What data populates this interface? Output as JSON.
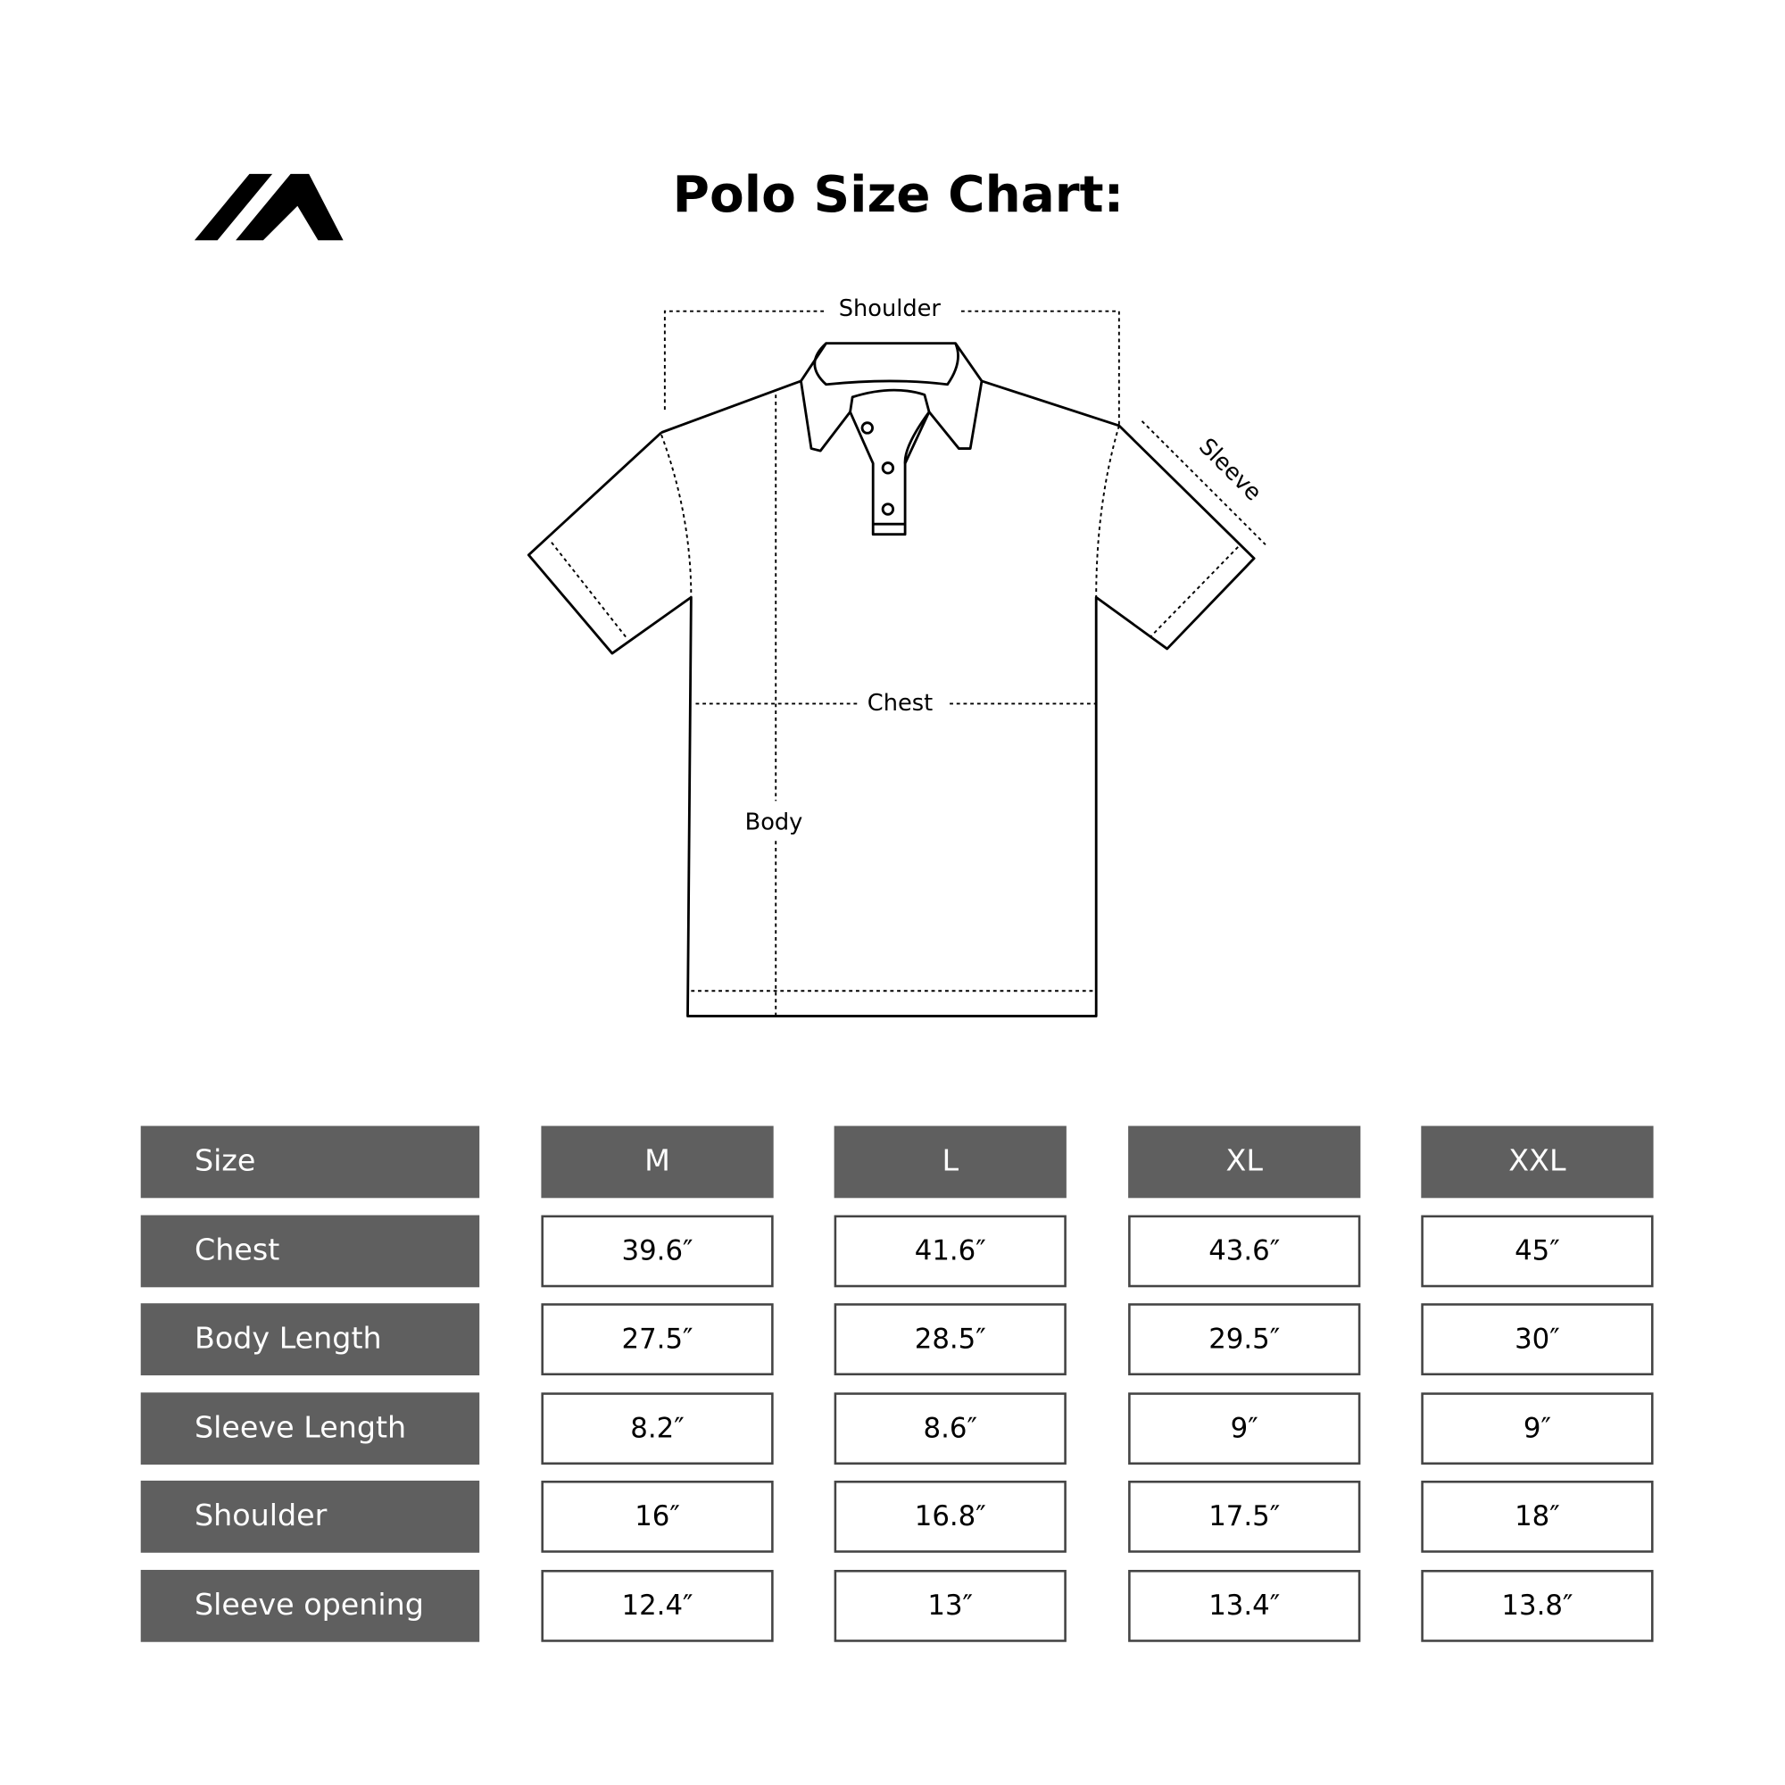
{
  "title": "Polo Size Chart:",
  "logo": {
    "name": "brand-logo-mountain-icon"
  },
  "diagram_labels": {
    "shoulder": "Shoulder",
    "sleeve": "Sleeve",
    "chest": "Chest",
    "body": "Body"
  },
  "table": {
    "corner": "Size",
    "sizes": [
      "M",
      "L",
      "XL",
      "XXL"
    ],
    "rows": [
      {
        "label": "Chest",
        "values": [
          "39.6″",
          "41.6″",
          "43.6″",
          "45″"
        ]
      },
      {
        "label": "Body Length",
        "values": [
          "27.5″",
          "28.5″",
          "29.5″",
          "30″"
        ]
      },
      {
        "label": "Sleeve Length",
        "values": [
          "8.2″",
          "8.6″",
          "9″",
          "9″"
        ]
      },
      {
        "label": "Shoulder",
        "values": [
          "16″",
          "16.8″",
          "17.5″",
          "18″"
        ]
      },
      {
        "label": "Sleeve opening",
        "values": [
          "12.4″",
          "13″",
          "13.4″",
          "13.8″"
        ]
      }
    ]
  },
  "colors": {
    "header_fill": "#5f5f5f",
    "header_text": "#ffffff",
    "cell_border": "#444444"
  }
}
